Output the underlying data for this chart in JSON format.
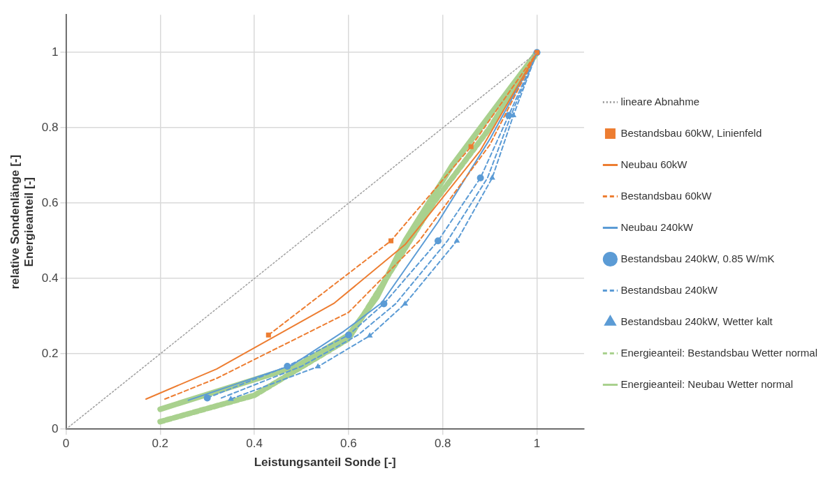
{
  "chart_data": {
    "type": "line",
    "xlabel": "Leistungsanteil Sonde [-]",
    "ylabel": "relative Sondenlänge [-]\nEnergieanteil [-]",
    "xlim": [
      0,
      1.1
    ],
    "ylim": [
      0,
      1.1
    ],
    "xticks": [
      0,
      0.2,
      0.4,
      0.6,
      0.8,
      1
    ],
    "yticks": [
      0,
      0.2,
      0.4,
      0.6,
      0.8,
      1
    ],
    "grid": true,
    "legend": "right",
    "series": [
      {
        "name": "lineare Abnahme",
        "color": "#a0a0a0",
        "line_style": "dotted",
        "marker": "none",
        "x": [
          0,
          1
        ],
        "values": [
          0,
          1
        ]
      },
      {
        "name": "Bestandsbau 60kW, Linienfeld",
        "color": "#ed7d31",
        "line_style": "dashed",
        "marker": "square",
        "x": [
          0.43,
          0.69,
          0.86,
          1
        ],
        "values": [
          0.25,
          0.5,
          0.75,
          1
        ]
      },
      {
        "name": "Neubau 60kW",
        "color": "#ed7d31",
        "line_style": "solid",
        "marker": "none",
        "x": [
          0.17,
          0.32,
          0.57,
          0.72,
          0.88,
          1
        ],
        "values": [
          0.08,
          0.16,
          0.335,
          0.49,
          0.74,
          1
        ]
      },
      {
        "name": "Bestandsbau 60kW",
        "color": "#ed7d31",
        "line_style": "dashed",
        "marker": "none",
        "x": [
          0.21,
          0.32,
          0.6,
          0.75,
          0.9,
          1
        ],
        "values": [
          0.08,
          0.135,
          0.31,
          0.5,
          0.755,
          1
        ]
      },
      {
        "name": "Neubau 240kW",
        "color": "#5b9bd5",
        "line_style": "solid",
        "marker": "none",
        "x": [
          0.26,
          0.48,
          0.59,
          0.67,
          0.79,
          0.9,
          1
        ],
        "values": [
          0.077,
          0.17,
          0.26,
          0.335,
          0.55,
          0.77,
          1
        ]
      },
      {
        "name": "Bestandsbau 240kW, 0.85 W/mK",
        "color": "#5b9bd5",
        "line_style": "dashed",
        "marker": "circle",
        "x": [
          0.3,
          0.47,
          0.6,
          0.675,
          0.79,
          0.88,
          0.94,
          1
        ],
        "values": [
          0.083,
          0.167,
          0.25,
          0.333,
          0.5,
          0.667,
          0.833,
          1
        ]
      },
      {
        "name": "Bestandsbau 240kW",
        "color": "#5b9bd5",
        "line_style": "dashed",
        "marker": "none",
        "x": [
          0.33,
          0.5,
          0.62,
          0.7,
          0.81,
          0.895,
          0.945,
          1
        ],
        "values": [
          0.083,
          0.167,
          0.25,
          0.333,
          0.5,
          0.667,
          0.833,
          1
        ]
      },
      {
        "name": "Bestandsbau 240kW, Wetter kalt",
        "color": "#5b9bd5",
        "line_style": "dashed",
        "marker": "triangle",
        "x": [
          0.35,
          0.535,
          0.645,
          0.72,
          0.83,
          0.905,
          0.95,
          1
        ],
        "values": [
          0.08,
          0.166,
          0.248,
          0.333,
          0.5,
          0.667,
          0.833,
          1
        ]
      },
      {
        "name": "Energieanteil: Bestandsbau Wetter normal",
        "color": "#a9d18e",
        "line_style": "dashed",
        "marker": "none",
        "x": [
          0.2,
          0.4,
          0.6,
          0.68,
          0.78,
          0.9,
          1
        ],
        "values": [
          0.02,
          0.09,
          0.24,
          0.4,
          0.6,
          0.8,
          1
        ]
      },
      {
        "name": "Energieanteil: Neubau Wetter normal",
        "color": "#a9d18e",
        "line_style": "solid",
        "marker": "none",
        "x": [
          0.2,
          0.49,
          0.6,
          0.66,
          0.72,
          0.82,
          1
        ],
        "values": [
          0.053,
          0.167,
          0.25,
          0.35,
          0.5,
          0.7,
          1
        ]
      }
    ]
  }
}
